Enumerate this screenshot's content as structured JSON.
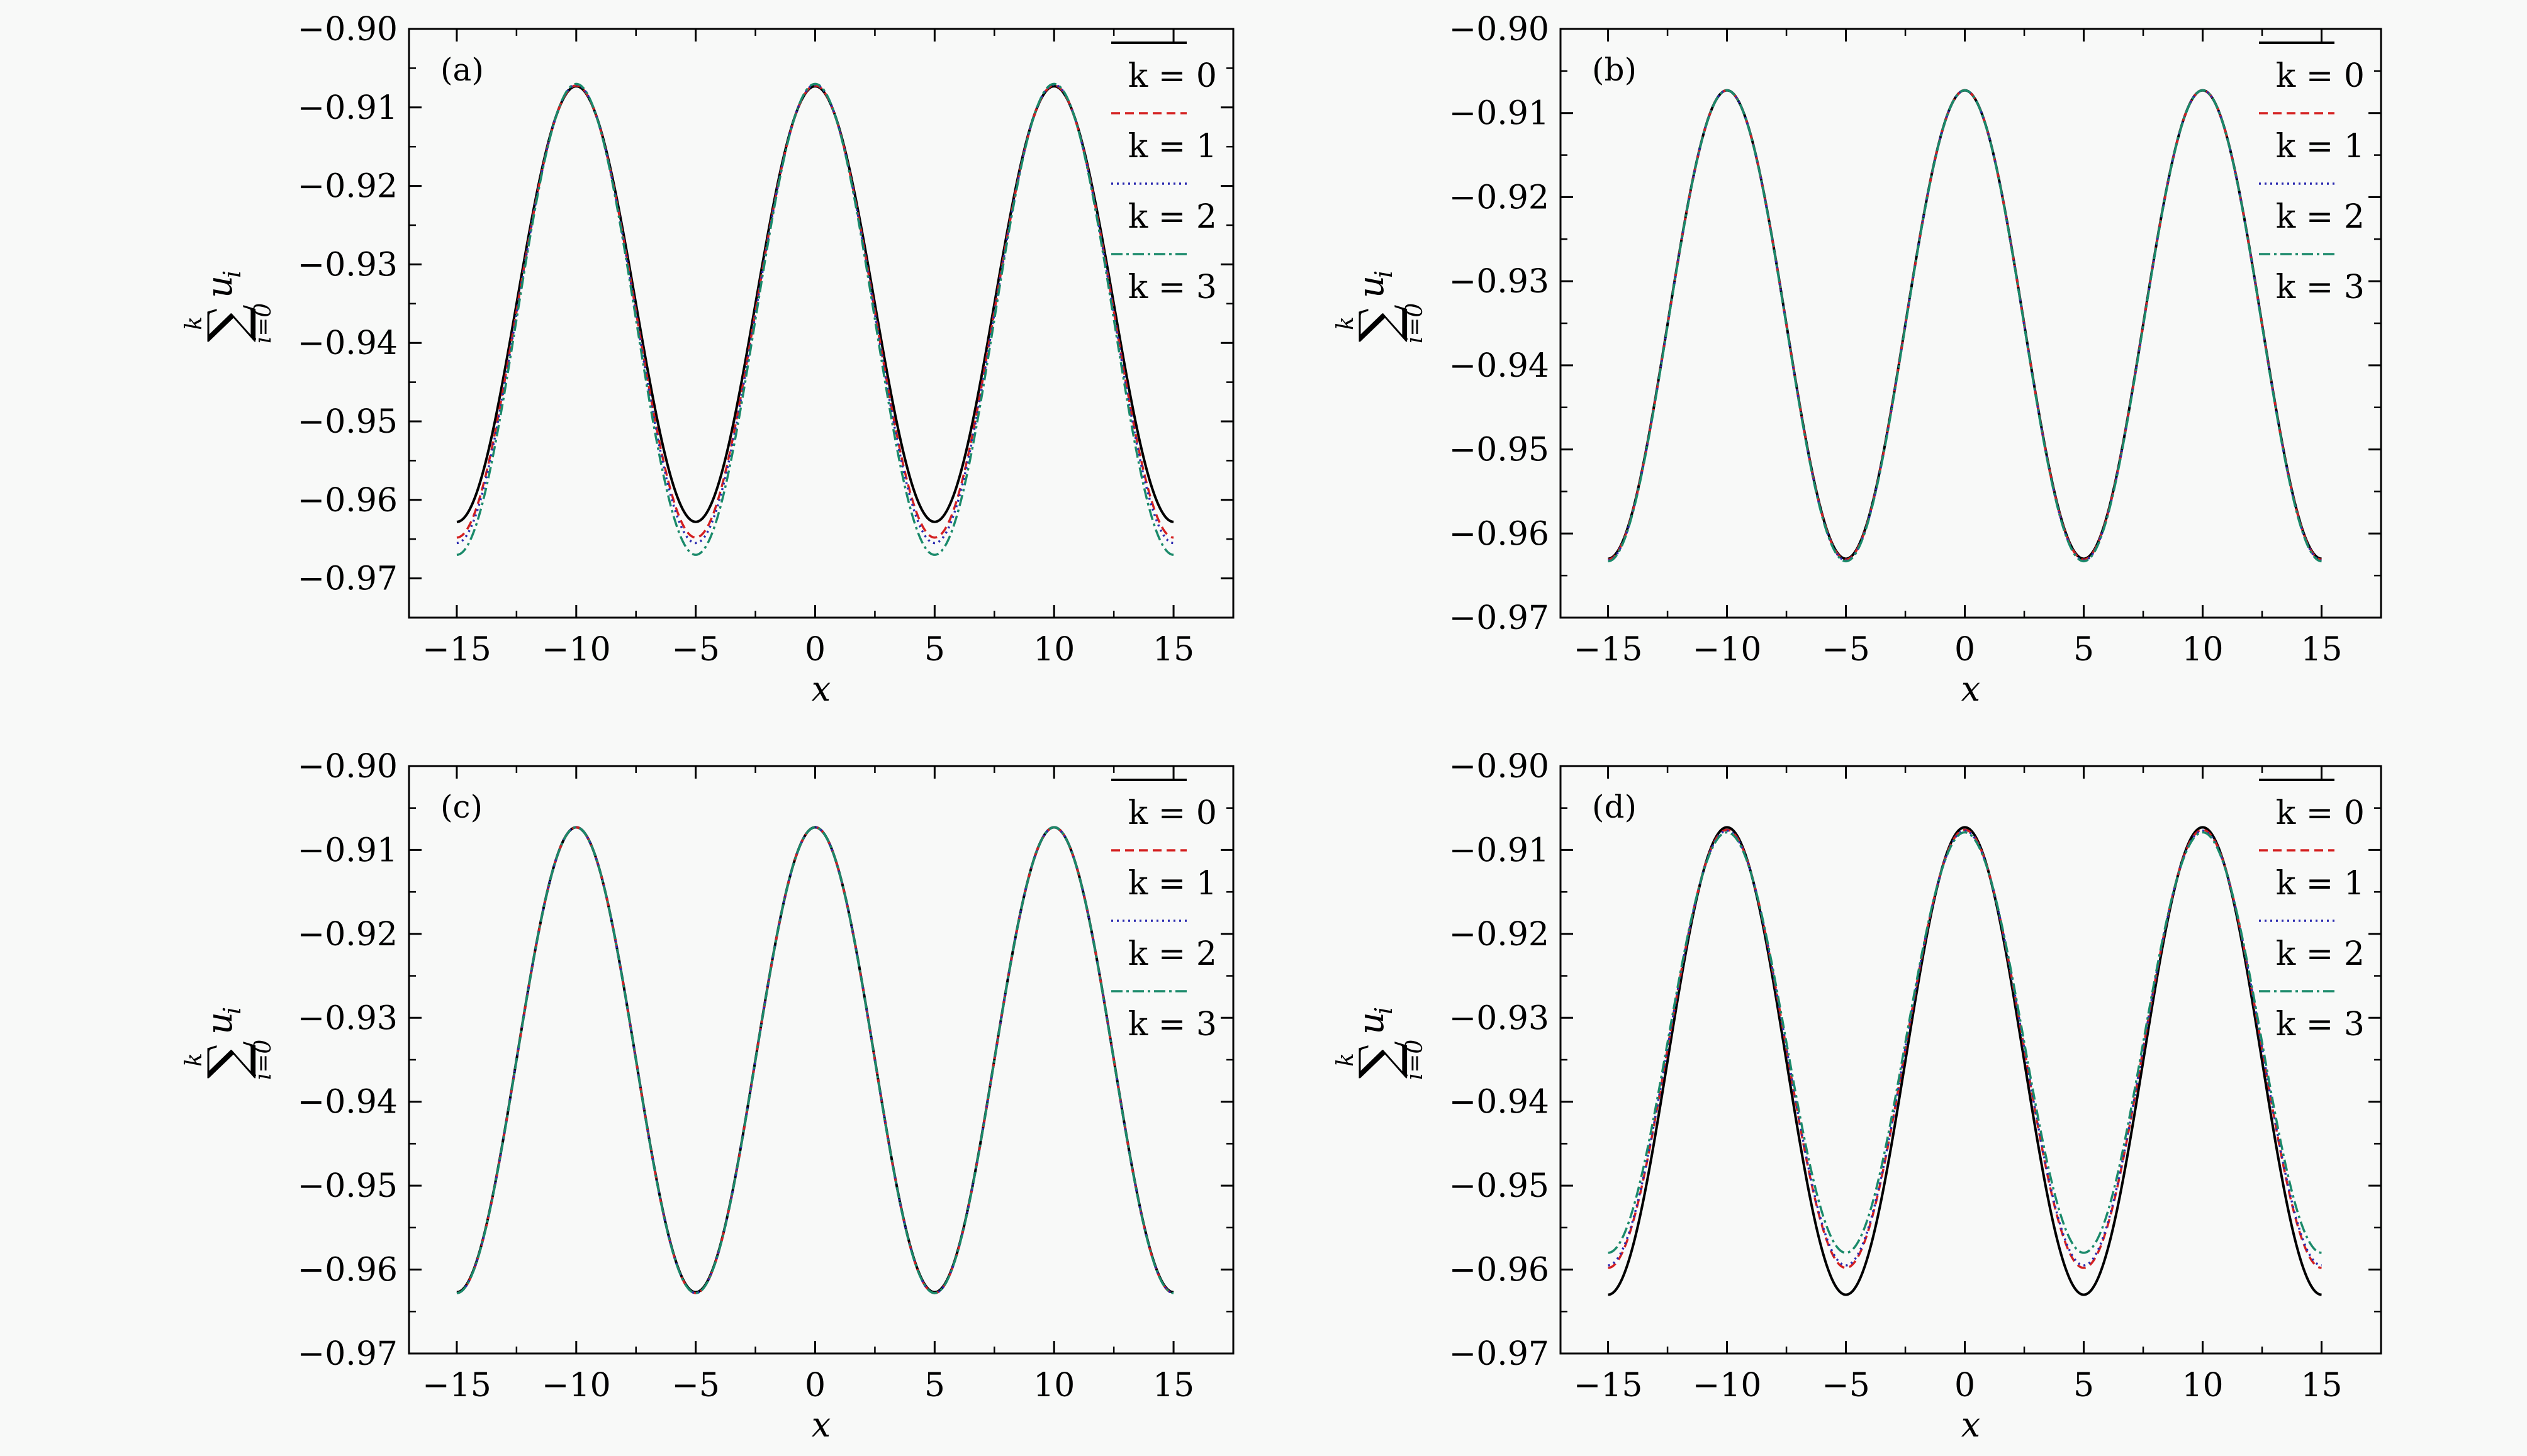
{
  "chart_data": [
    {
      "type": "line",
      "panel_label": "(a)",
      "xlabel": "x",
      "ylabel": {
        "sum_symbol": "∑",
        "upper": "k",
        "lower": "i=0",
        "term": "u",
        "subscript": "i"
      },
      "xlim": [
        -17,
        17.5
      ],
      "ylim": [
        -0.975,
        -0.9
      ],
      "xticks": [
        -15,
        -10,
        -5,
        0,
        5,
        10,
        15
      ],
      "yticks": [
        -0.97,
        -0.96,
        -0.95,
        -0.94,
        -0.93,
        -0.92,
        -0.91,
        -0.9
      ],
      "legend_position": "top-right",
      "series": [
        {
          "name": "k = 0",
          "color": "#000000",
          "dash": "solid",
          "peak": -0.9073,
          "trough": -0.9628
        },
        {
          "name": "k = 1",
          "color": "#d42020",
          "dash": "dashed",
          "peak": -0.9072,
          "trough": -0.9648
        },
        {
          "name": "k = 2",
          "color": "#2b2bb0",
          "dash": "dotted",
          "peak": -0.9071,
          "trough": -0.9655
        },
        {
          "name": "k = 3",
          "color": "#1a8a6a",
          "dash": "dashdot",
          "peak": -0.907,
          "trough": -0.967
        }
      ]
    },
    {
      "type": "line",
      "panel_label": "(b)",
      "xlabel": "x",
      "ylabel": {
        "sum_symbol": "∑",
        "upper": "k",
        "lower": "i=0",
        "term": "u",
        "subscript": "i"
      },
      "xlim": [
        -17,
        17.5
      ],
      "ylim": [
        -0.97,
        -0.9
      ],
      "xticks": [
        -15,
        -10,
        -5,
        0,
        5,
        10,
        15
      ],
      "yticks": [
        -0.97,
        -0.96,
        -0.95,
        -0.94,
        -0.93,
        -0.92,
        -0.91,
        -0.9
      ],
      "legend_position": "top-right",
      "series": [
        {
          "name": "k = 0",
          "color": "#000000",
          "dash": "solid",
          "peak": -0.9073,
          "trough": -0.963
        },
        {
          "name": "k = 1",
          "color": "#d42020",
          "dash": "dashed",
          "peak": -0.9073,
          "trough": -0.9631
        },
        {
          "name": "k = 2",
          "color": "#2b2bb0",
          "dash": "dotted",
          "peak": -0.9073,
          "trough": -0.9632
        },
        {
          "name": "k = 3",
          "color": "#1a8a6a",
          "dash": "dashdot",
          "peak": -0.9073,
          "trough": -0.9633
        }
      ]
    },
    {
      "type": "line",
      "panel_label": "(c)",
      "xlabel": "x",
      "ylabel": {
        "sum_symbol": "∑",
        "upper": "k",
        "lower": "i=0",
        "term": "u",
        "subscript": "i"
      },
      "xlim": [
        -17,
        17.5
      ],
      "ylim": [
        -0.97,
        -0.9
      ],
      "xticks": [
        -15,
        -10,
        -5,
        0,
        5,
        10,
        15
      ],
      "yticks": [
        -0.97,
        -0.96,
        -0.95,
        -0.94,
        -0.93,
        -0.92,
        -0.91,
        -0.9
      ],
      "legend_position": "top-right",
      "series": [
        {
          "name": "k = 0",
          "color": "#000000",
          "dash": "solid",
          "peak": -0.9073,
          "trough": -0.9627
        },
        {
          "name": "k = 1",
          "color": "#d42020",
          "dash": "dashed",
          "peak": -0.9073,
          "trough": -0.9628
        },
        {
          "name": "k = 2",
          "color": "#2b2bb0",
          "dash": "dotted",
          "peak": -0.9073,
          "trough": -0.9628
        },
        {
          "name": "k = 3",
          "color": "#1a8a6a",
          "dash": "dashdot",
          "peak": -0.9073,
          "trough": -0.9628
        }
      ]
    },
    {
      "type": "line",
      "panel_label": "(d)",
      "xlabel": "x",
      "ylabel": {
        "sum_symbol": "∑",
        "upper": "k",
        "lower": "i=0",
        "term": "u",
        "subscript": "i"
      },
      "xlim": [
        -17,
        17.5
      ],
      "ylim": [
        -0.97,
        -0.9
      ],
      "xticks": [
        -15,
        -10,
        -5,
        0,
        5,
        10,
        15
      ],
      "yticks": [
        -0.97,
        -0.96,
        -0.95,
        -0.94,
        -0.93,
        -0.92,
        -0.91,
        -0.9
      ],
      "legend_position": "top-right",
      "series": [
        {
          "name": "k = 0",
          "color": "#000000",
          "dash": "solid",
          "peak": -0.9073,
          "trough": -0.963
        },
        {
          "name": "k = 1",
          "color": "#d42020",
          "dash": "dashed",
          "peak": -0.9076,
          "trough": -0.9598
        },
        {
          "name": "k = 2",
          "color": "#2b2bb0",
          "dash": "dotted",
          "peak": -0.9077,
          "trough": -0.9595
        },
        {
          "name": "k = 3",
          "color": "#1a8a6a",
          "dash": "dashdot",
          "peak": -0.9079,
          "trough": -0.958
        }
      ]
    }
  ]
}
